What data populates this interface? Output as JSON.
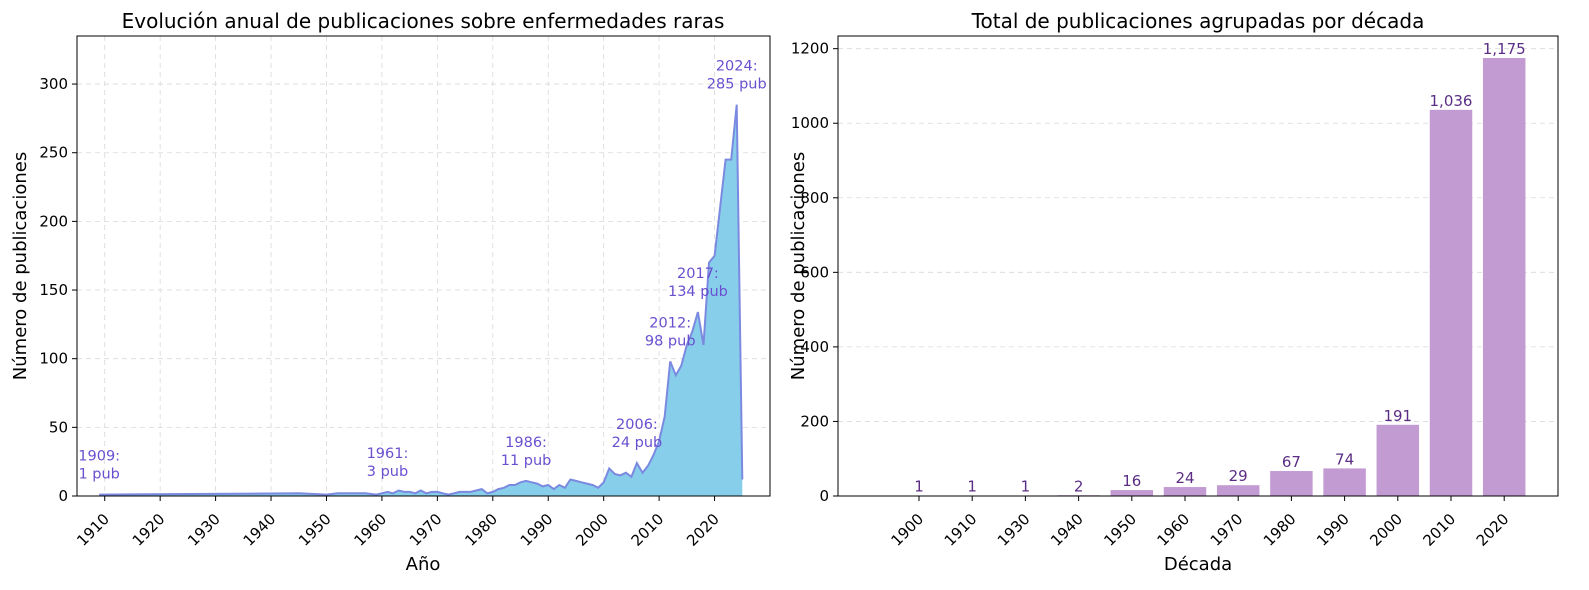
{
  "chart_data": [
    {
      "type": "area",
      "title": "Evolución anual de publicaciones sobre enfermedades raras",
      "xlabel": "Año",
      "ylabel": "Número de publicaciones",
      "xlim": [
        1905,
        2030
      ],
      "ylim": [
        0,
        335
      ],
      "x_ticks": [
        1910,
        1920,
        1930,
        1940,
        1950,
        1960,
        1970,
        1980,
        1990,
        2000,
        2010,
        2020
      ],
      "y_ticks": [
        0,
        50,
        100,
        150,
        200,
        250,
        300
      ],
      "grid": true,
      "fill_color": "#87ceeb",
      "line_color": "#7b8ae0",
      "series": [
        {
          "x": [
            1909,
            1945,
            1950,
            1952,
            1957,
            1959,
            1961,
            1962,
            1963,
            1964,
            1965,
            1966,
            1967,
            1968,
            1969,
            1970,
            1971,
            1972,
            1973,
            1974,
            1975,
            1976,
            1977,
            1978,
            1979,
            1980,
            1981,
            1982,
            1983,
            1984,
            1985,
            1986,
            1987,
            1988,
            1989,
            1990,
            1991,
            1992,
            1993,
            1994,
            1995,
            1996,
            1997,
            1998,
            1999,
            2000,
            2001,
            2002,
            2003,
            2004,
            2005,
            2006,
            2007,
            2008,
            2009,
            2010,
            2011,
            2012,
            2013,
            2014,
            2015,
            2016,
            2017,
            2018,
            2019,
            2020,
            2021,
            2022,
            2023,
            2024,
            2025
          ],
          "y": [
            1,
            2,
            1,
            2,
            2,
            1,
            3,
            2,
            4,
            3,
            3,
            2,
            4,
            2,
            3,
            3,
            2,
            1,
            2,
            3,
            3,
            3,
            4,
            5,
            2,
            3,
            5,
            6,
            8,
            8,
            10,
            11,
            10,
            9,
            7,
            8,
            5,
            8,
            6,
            12,
            11,
            10,
            9,
            8,
            6,
            10,
            20,
            16,
            15,
            17,
            14,
            24,
            17,
            22,
            30,
            40,
            58,
            98,
            88,
            95,
            110,
            120,
            134,
            110,
            170,
            175,
            210,
            245,
            245,
            285,
            12
          ]
        }
      ],
      "annotations": [
        {
          "label": "1909:",
          "value": "1 pub",
          "x": 1909,
          "y": 1
        },
        {
          "label": "1961:",
          "value": "3 pub",
          "x": 1961,
          "y": 3
        },
        {
          "label": "1986:",
          "value": "11 pub",
          "x": 1986,
          "y": 11
        },
        {
          "label": "2006:",
          "value": "24 pub",
          "x": 2006,
          "y": 24
        },
        {
          "label": "2012:",
          "value": "98 pub",
          "x": 2012,
          "y": 98
        },
        {
          "label": "2017:",
          "value": "134 pub",
          "x": 2017,
          "y": 134
        },
        {
          "label": "2024:",
          "value": "285 pub",
          "x": 2024,
          "y": 285
        }
      ]
    },
    {
      "type": "bar",
      "title": "Total de publicaciones agrupadas por década",
      "xlabel": "Década",
      "ylabel": "Número de publicaciones",
      "ylim": [
        0,
        1234
      ],
      "y_ticks": [
        0,
        200,
        400,
        600,
        800,
        1000,
        1200
      ],
      "grid": true,
      "bar_color": "#c39bd3",
      "categories": [
        "1900",
        "1910",
        "1930",
        "1940",
        "1950",
        "1960",
        "1970",
        "1980",
        "1990",
        "2000",
        "2010",
        "2020"
      ],
      "values": [
        1,
        1,
        1,
        2,
        16,
        24,
        29,
        67,
        74,
        191,
        1036,
        1175
      ],
      "value_labels": [
        "1",
        "1",
        "1",
        "2",
        "16",
        "24",
        "29",
        "67",
        "74",
        "191",
        "1,036",
        "1,175"
      ]
    }
  ]
}
